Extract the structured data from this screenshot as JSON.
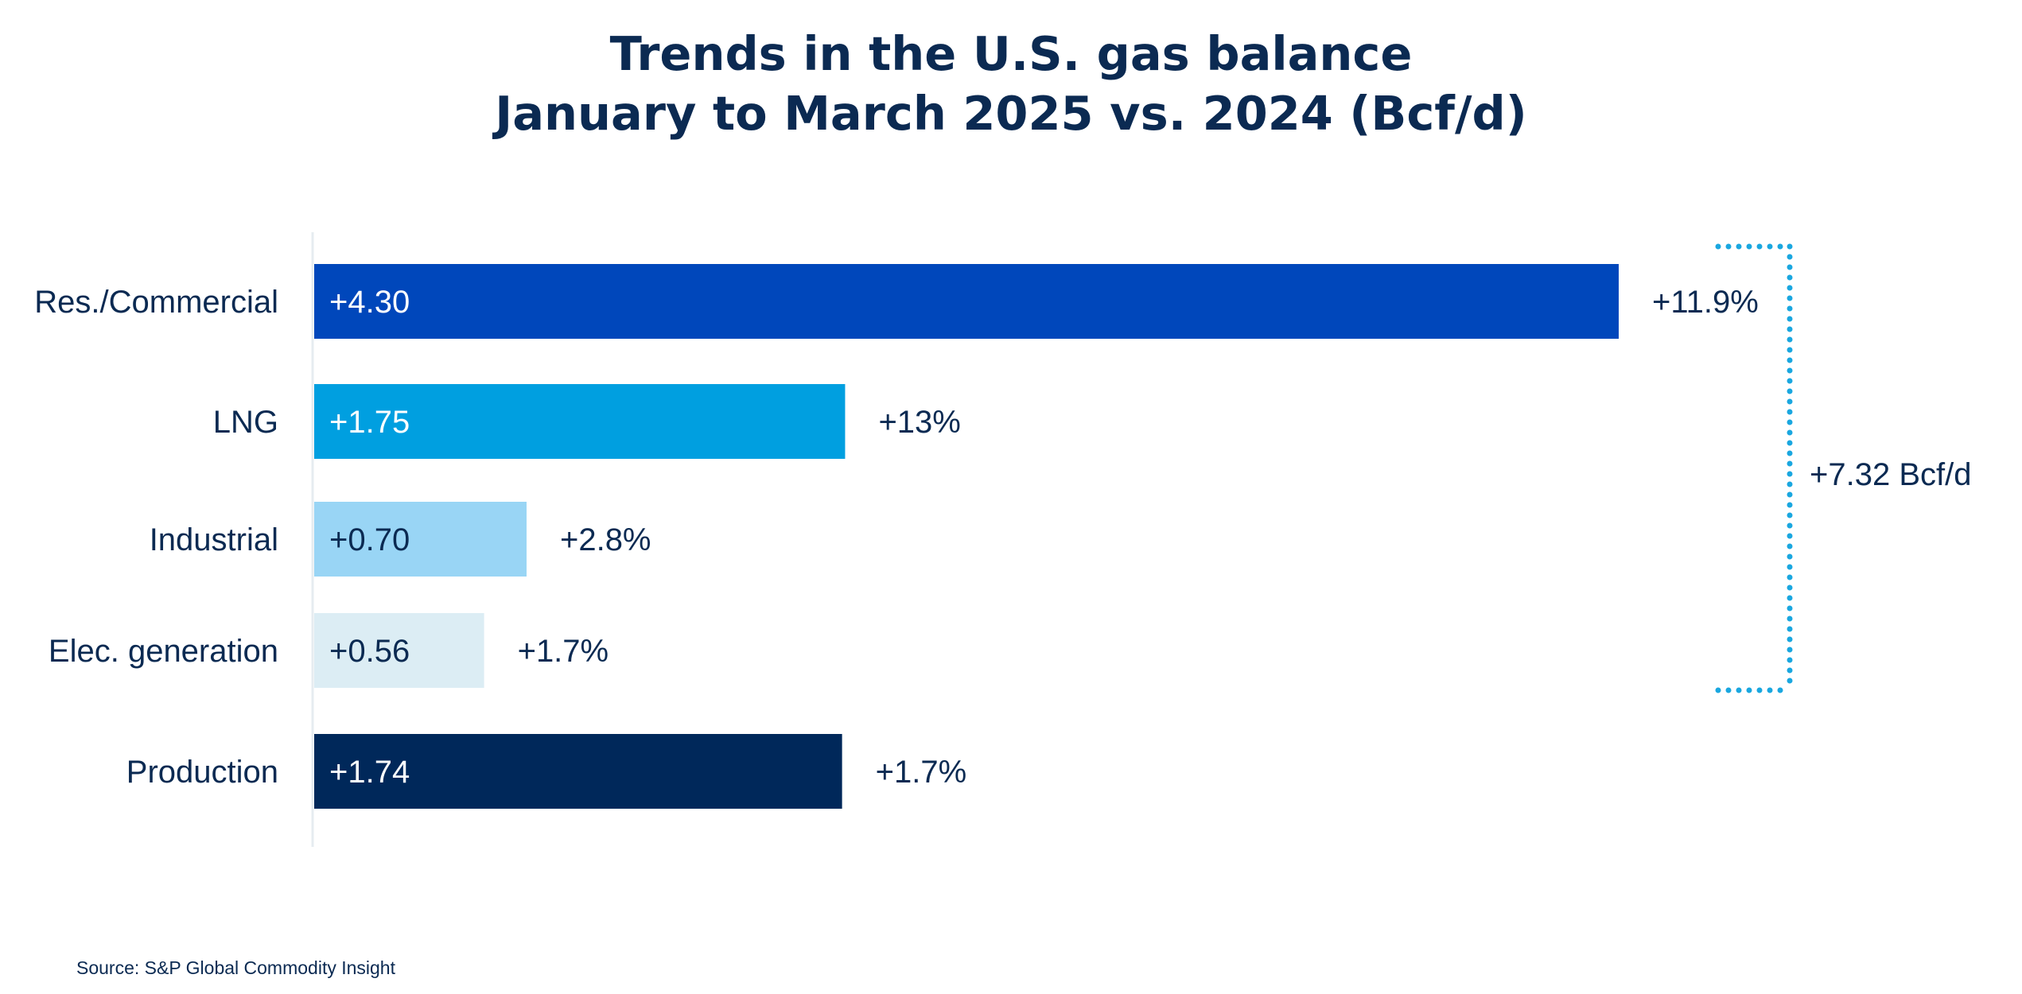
{
  "chart_data": {
    "type": "bar",
    "orientation": "horizontal",
    "title": "Trends in the U.S. gas balance",
    "subtitle": "January to March 2025 vs. 2024 (Bcf/d)",
    "categories": [
      "Res./Commercial",
      "LNG",
      "Industrial",
      "Elec. generation",
      "Production"
    ],
    "values": [
      4.3,
      1.75,
      0.7,
      0.56,
      1.74
    ],
    "value_labels": [
      "+4.30",
      "+1.75",
      "+0.70",
      "+0.56",
      "+1.74"
    ],
    "pct_labels": [
      "+11.9%",
      "+13%",
      "+2.8%",
      "+1.7%",
      "+1.7%"
    ],
    "bar_colors": [
      "#0047bb",
      "#009fe0",
      "#99d5f5",
      "#dcedf4",
      "#00285a"
    ],
    "value_label_colors": [
      "#ffffff",
      "#ffffff",
      "#0b2a52",
      "#0b2a52",
      "#ffffff"
    ],
    "xlim": [
      0,
      4.3
    ],
    "grid": false,
    "bracket": {
      "label": "+7.32 Bcf/d",
      "spans_categories": [
        "Res./Commercial",
        "LNG",
        "Industrial",
        "Elec. generation"
      ],
      "color": "#1aa7e0"
    },
    "text_color": "#0b2a52",
    "axis_color": "#e6ecf0"
  },
  "source": "Source: S&P Global Commodity Insight"
}
